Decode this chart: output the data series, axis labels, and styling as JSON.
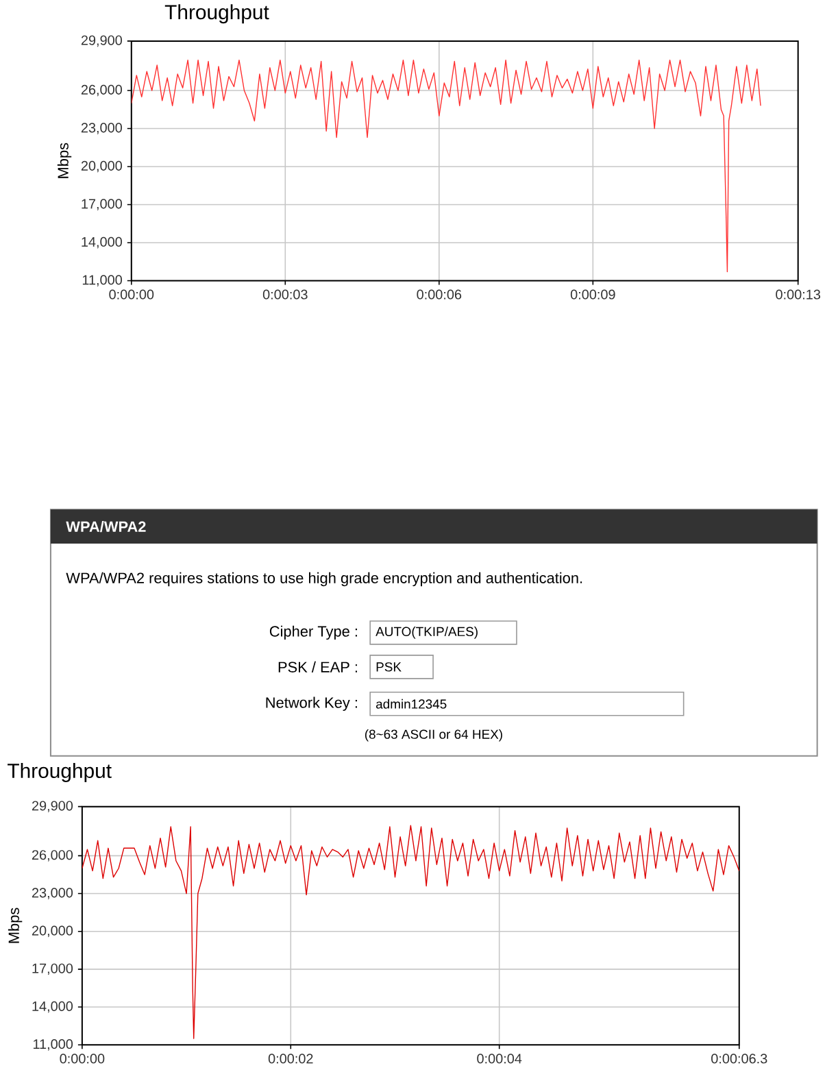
{
  "chart_data": [
    {
      "type": "line",
      "title": "Throughput",
      "ylabel": "Mbps",
      "color": "#ff3030",
      "grid": true,
      "xlim": [
        0,
        13
      ],
      "ylim": [
        11000,
        29900
      ],
      "xticks": [
        {
          "value": 0,
          "label": "0:00:00"
        },
        {
          "value": 3,
          "label": "0:00:03"
        },
        {
          "value": 6,
          "label": "0:00:06"
        },
        {
          "value": 9,
          "label": "0:00:09"
        },
        {
          "value": 13,
          "label": "0:00:13"
        }
      ],
      "yticks": [
        {
          "value": 11000,
          "label": "11,000"
        },
        {
          "value": 14000,
          "label": "14,000"
        },
        {
          "value": 17000,
          "label": "17,000"
        },
        {
          "value": 20000,
          "label": "20,000"
        },
        {
          "value": 23000,
          "label": "23,000"
        },
        {
          "value": 26000,
          "label": "26,000"
        },
        {
          "value": 29900,
          "label": "29,900"
        }
      ],
      "x": [
        0.0,
        0.1,
        0.2,
        0.3,
        0.4,
        0.5,
        0.6,
        0.7,
        0.8,
        0.9,
        1.0,
        1.1,
        1.2,
        1.3,
        1.4,
        1.5,
        1.6,
        1.7,
        1.8,
        1.9,
        2.0,
        2.1,
        2.2,
        2.3,
        2.4,
        2.5,
        2.6,
        2.7,
        2.8,
        2.9,
        3.0,
        3.1,
        3.2,
        3.3,
        3.4,
        3.5,
        3.6,
        3.7,
        3.8,
        3.9,
        4.0,
        4.1,
        4.2,
        4.3,
        4.4,
        4.5,
        4.6,
        4.7,
        4.8,
        4.9,
        5.0,
        5.1,
        5.2,
        5.3,
        5.4,
        5.5,
        5.6,
        5.7,
        5.8,
        5.9,
        6.0,
        6.1,
        6.2,
        6.3,
        6.4,
        6.5,
        6.6,
        6.7,
        6.8,
        6.9,
        7.0,
        7.1,
        7.2,
        7.3,
        7.4,
        7.5,
        7.6,
        7.7,
        7.8,
        7.9,
        8.0,
        8.1,
        8.2,
        8.3,
        8.4,
        8.5,
        8.6,
        8.7,
        8.8,
        8.9,
        9.0,
        9.1,
        9.2,
        9.3,
        9.4,
        9.5,
        9.6,
        9.7,
        9.8,
        9.9,
        10.0,
        10.1,
        10.2,
        10.3,
        10.4,
        10.5,
        10.6,
        10.7,
        10.8,
        10.9,
        11.0,
        11.1,
        11.2,
        11.3,
        11.4,
        11.5,
        11.55,
        11.6,
        11.62,
        11.65,
        11.7,
        11.8,
        11.9,
        12.0,
        12.1,
        12.2,
        12.27
      ],
      "values": [
        25000,
        27200,
        25500,
        27500,
        26000,
        28000,
        25200,
        27000,
        24800,
        27300,
        26200,
        28400,
        25000,
        28400,
        25600,
        28300,
        24600,
        27900,
        25200,
        27100,
        26300,
        28400,
        26000,
        25000,
        23600,
        27300,
        24600,
        27800,
        26000,
        28400,
        25800,
        27500,
        25400,
        28000,
        26200,
        27800,
        25300,
        28300,
        22800,
        27500,
        22300,
        26700,
        25400,
        28300,
        25900,
        27000,
        22300,
        27200,
        25800,
        26800,
        25300,
        27300,
        26000,
        28400,
        25600,
        28400,
        25800,
        27700,
        26100,
        27400,
        24000,
        26600,
        25500,
        28300,
        24800,
        27800,
        25300,
        28200,
        25600,
        27400,
        26300,
        27800,
        24900,
        28400,
        25000,
        27600,
        25700,
        28300,
        26100,
        27000,
        25900,
        28300,
        25500,
        27200,
        26200,
        26900,
        25800,
        27500,
        26000,
        27700,
        24600,
        27900,
        25500,
        27000,
        24800,
        26700,
        25100,
        27300,
        25700,
        28400,
        25200,
        27800,
        23000,
        27300,
        26000,
        28400,
        26300,
        28400,
        25900,
        27500,
        26600,
        24000,
        27900,
        25200,
        28000,
        24500,
        24000,
        15600,
        11700,
        23600,
        24800,
        27900,
        25000,
        28000,
        25200,
        27700,
        24800
      ]
    },
    {
      "type": "other",
      "title": "WPA/WPA2",
      "annotations": [
        "WPA/WPA2 requires stations to use high grade encryption and authentication.",
        "Cipher Type :",
        "AUTO(TKIP/AES)",
        "PSK / EAP :",
        "PSK",
        "Network Key :",
        "admin12345",
        "(8~63 ASCII or 64 HEX)"
      ]
    },
    {
      "type": "line",
      "title": "Throughput",
      "ylabel": "Mbps",
      "color": "#dd0000",
      "grid": true,
      "xlim": [
        0,
        6.3
      ],
      "ylim": [
        11000,
        29900
      ],
      "xticks": [
        {
          "value": 0,
          "label": "0:00:00"
        },
        {
          "value": 2,
          "label": "0:00:02"
        },
        {
          "value": 4,
          "label": "0:00:04"
        },
        {
          "value": 6.3,
          "label": "0:00:06.3"
        }
      ],
      "yticks": [
        {
          "value": 11000,
          "label": "11,000"
        },
        {
          "value": 14000,
          "label": "14,000"
        },
        {
          "value": 17000,
          "label": "17,000"
        },
        {
          "value": 20000,
          "label": "20,000"
        },
        {
          "value": 23000,
          "label": "23,000"
        },
        {
          "value": 26000,
          "label": "26,000"
        },
        {
          "value": 29900,
          "label": "29,900"
        }
      ],
      "x": [
        0.0,
        0.05,
        0.1,
        0.15,
        0.2,
        0.25,
        0.3,
        0.35,
        0.4,
        0.45,
        0.5,
        0.55,
        0.6,
        0.65,
        0.7,
        0.75,
        0.8,
        0.85,
        0.9,
        0.95,
        1.0,
        1.04,
        1.06,
        1.07,
        1.09,
        1.11,
        1.15,
        1.2,
        1.25,
        1.3,
        1.35,
        1.4,
        1.45,
        1.5,
        1.55,
        1.6,
        1.65,
        1.7,
        1.75,
        1.8,
        1.85,
        1.9,
        1.95,
        2.0,
        2.05,
        2.1,
        2.15,
        2.2,
        2.25,
        2.3,
        2.35,
        2.4,
        2.45,
        2.5,
        2.55,
        2.6,
        2.65,
        2.7,
        2.75,
        2.8,
        2.85,
        2.9,
        2.95,
        3.0,
        3.05,
        3.1,
        3.15,
        3.2,
        3.25,
        3.3,
        3.35,
        3.4,
        3.45,
        3.5,
        3.55,
        3.6,
        3.65,
        3.7,
        3.75,
        3.8,
        3.85,
        3.9,
        3.95,
        4.0,
        4.05,
        4.1,
        4.15,
        4.2,
        4.25,
        4.3,
        4.35,
        4.4,
        4.45,
        4.5,
        4.55,
        4.6,
        4.65,
        4.7,
        4.75,
        4.8,
        4.85,
        4.9,
        4.95,
        5.0,
        5.05,
        5.1,
        5.15,
        5.2,
        5.25,
        5.3,
        5.35,
        5.4,
        5.45,
        5.5,
        5.55,
        5.6,
        5.65,
        5.7,
        5.75,
        5.8,
        5.85,
        5.9,
        5.95,
        6.0,
        6.05,
        6.1,
        6.15,
        6.2,
        6.25,
        6.3
      ],
      "values": [
        25000,
        26500,
        24800,
        27200,
        24200,
        26600,
        24300,
        25000,
        26600,
        26600,
        26600,
        25500,
        24500,
        26800,
        25000,
        27400,
        25100,
        28300,
        25600,
        24800,
        23000,
        28300,
        15500,
        11500,
        17000,
        23000,
        24200,
        26600,
        25000,
        26700,
        25200,
        26700,
        23600,
        27200,
        24600,
        26900,
        25000,
        27000,
        24700,
        26500,
        25600,
        27200,
        25400,
        26800,
        25600,
        26800,
        22900,
        26400,
        25200,
        26700,
        25900,
        26500,
        26300,
        25900,
        26500,
        24300,
        26400,
        25000,
        26600,
        25300,
        27000,
        24900,
        28300,
        24300,
        27500,
        25200,
        28400,
        25600,
        28300,
        23600,
        28200,
        25300,
        27400,
        23600,
        27300,
        25600,
        27000,
        24400,
        27300,
        25600,
        26500,
        24200,
        27000,
        24800,
        26500,
        24400,
        28000,
        25500,
        27500,
        24600,
        27800,
        25200,
        26700,
        24300,
        27000,
        24000,
        28200,
        25200,
        27600,
        24400,
        27300,
        24800,
        27200,
        24900,
        26800,
        24200,
        27800,
        25500,
        27100,
        24200,
        27600,
        24200,
        28200,
        25000,
        27900,
        25600,
        27500,
        24700,
        27300,
        25800,
        27000,
        24800,
        26300,
        24600,
        23200,
        26500,
        24500,
        26800,
        25900,
        24800
      ]
    }
  ]
}
